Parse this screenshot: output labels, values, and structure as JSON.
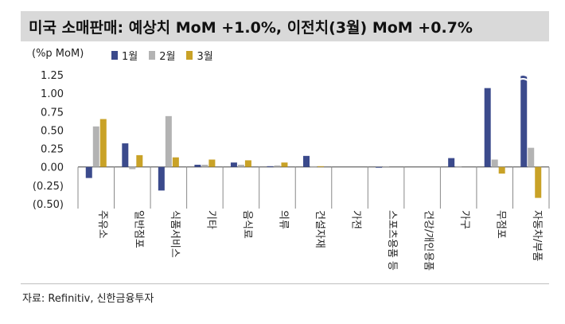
{
  "title": "미국 소매판매: 예상치 MoM +1.0%, 이전치(3월) MoM +0.7%",
  "source": "자료: Refinitiv, 신한금융투자",
  "chart_data": {
    "type": "bar",
    "unit_label": "(%p MoM)",
    "categories": [
      "주유소",
      "일반점포",
      "식품서비스",
      "기타",
      "음식료",
      "의류",
      "건설자재",
      "가전",
      "스포츠용품 등",
      "건강/개인용품",
      "가구",
      "무점포",
      "자동차/부품"
    ],
    "series": [
      {
        "name": "1월",
        "color": "#3b4a8c",
        "values": [
          -0.15,
          0.32,
          -0.32,
          0.03,
          0.06,
          0.01,
          0.15,
          0.0,
          -0.01,
          0.0,
          0.12,
          1.07,
          1.25
        ]
      },
      {
        "name": "2월",
        "color": "#b3b3b3",
        "values": [
          0.55,
          -0.03,
          0.69,
          0.03,
          0.03,
          0.02,
          0.01,
          0.0,
          -0.01,
          0.0,
          0.01,
          0.1,
          0.26
        ]
      },
      {
        "name": "3월",
        "color": "#c9a227",
        "values": [
          0.65,
          0.16,
          0.13,
          0.1,
          0.09,
          0.06,
          0.01,
          0.0,
          0.0,
          0.0,
          0.0,
          -0.09,
          -0.42
        ]
      }
    ],
    "y_ticks": [
      "1.25",
      "1.00",
      "0.75",
      "0.50",
      "0.25",
      "0.00",
      "(0.25)",
      "(0.50)"
    ],
    "ylim": [
      -0.5,
      1.25
    ],
    "grid": false,
    "legend_position": "top"
  }
}
